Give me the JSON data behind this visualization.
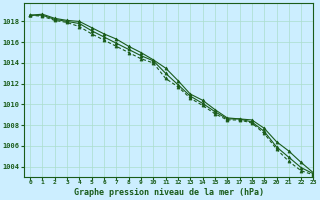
{
  "title": "Graphe pression niveau de la mer (hPa)",
  "background_color": "#cceeff",
  "grid_color": "#aaddcc",
  "line_color": "#1a5c1a",
  "marker_color": "#1a5c1a",
  "xlim": [
    -0.5,
    23
  ],
  "ylim": [
    1003.0,
    1019.8
  ],
  "yticks": [
    1004,
    1006,
    1008,
    1010,
    1012,
    1014,
    1016,
    1018
  ],
  "xticks": [
    0,
    1,
    2,
    3,
    4,
    5,
    6,
    7,
    8,
    9,
    10,
    11,
    12,
    13,
    14,
    15,
    16,
    17,
    18,
    19,
    20,
    21,
    22,
    23
  ],
  "series1": [
    1018.6,
    1018.7,
    1018.3,
    1018.1,
    1018.0,
    1017.4,
    1016.8,
    1016.3,
    1015.6,
    1015.0,
    1014.3,
    1013.5,
    1012.3,
    1011.0,
    1010.4,
    1009.5,
    1008.7,
    1008.6,
    1008.5,
    1007.7,
    1006.4,
    1005.5,
    1004.4,
    1003.4
  ],
  "series2": [
    1018.6,
    1018.5,
    1018.1,
    1017.9,
    1017.5,
    1016.8,
    1016.2,
    1015.6,
    1015.0,
    1014.4,
    1014.0,
    1012.5,
    1011.7,
    1010.6,
    1009.9,
    1009.1,
    1008.5,
    1008.5,
    1008.2,
    1007.2,
    1005.7,
    1004.5,
    1003.6,
    1003.2
  ],
  "series3": [
    1018.6,
    1018.6,
    1018.2,
    1018.0,
    1017.8,
    1017.1,
    1016.5,
    1015.9,
    1015.3,
    1014.7,
    1014.2,
    1013.0,
    1011.9,
    1010.8,
    1010.1,
    1009.3,
    1008.6,
    1008.6,
    1008.3,
    1007.4,
    1005.9,
    1004.9,
    1003.9,
    1003.3
  ]
}
